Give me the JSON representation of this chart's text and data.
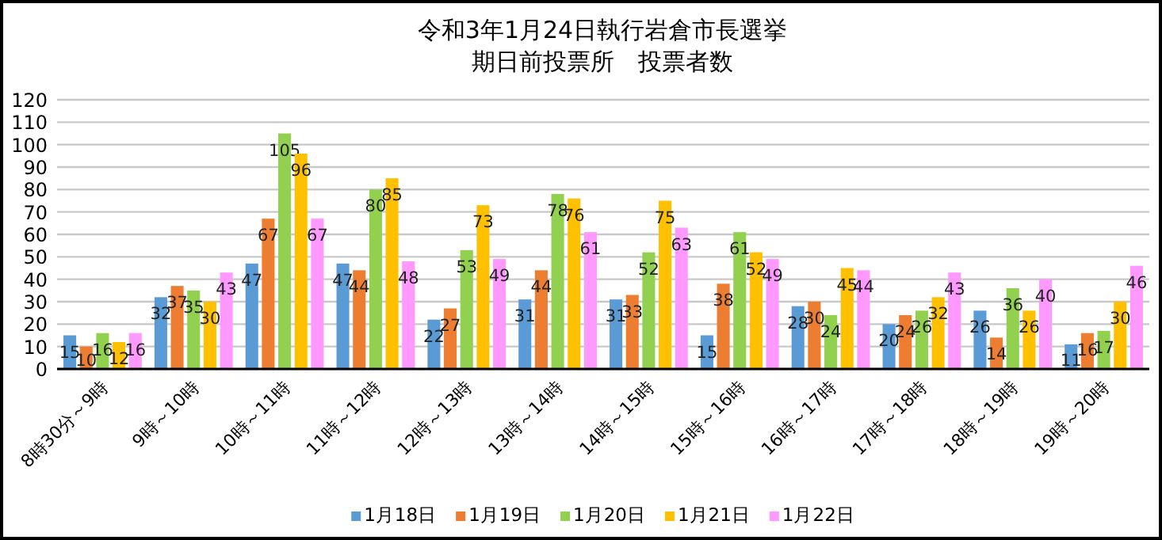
{
  "chart_data": {
    "type": "bar",
    "title": "令和3年1月24日執行岩倉市長選挙",
    "subtitle": "期日前投票所　投票者数",
    "categories": [
      "8時30分～9時",
      "9時～10時",
      "10時～11時",
      "11時～12時",
      "12時～13時",
      "13時～14時",
      "14時～15時",
      "15時～16時",
      "16時～17時",
      "17時～18時",
      "18時～19時",
      "19時～20時"
    ],
    "series": [
      {
        "name": "1月18日",
        "color": "#5b9bd5",
        "values": [
          15,
          32,
          47,
          47,
          22,
          31,
          31,
          15,
          28,
          20,
          26,
          11
        ]
      },
      {
        "name": "1月19日",
        "color": "#ed7d31",
        "values": [
          10,
          37,
          67,
          44,
          27,
          44,
          33,
          38,
          30,
          24,
          14,
          16
        ]
      },
      {
        "name": "1月20日",
        "color": "#92d050",
        "values": [
          16,
          35,
          105,
          80,
          53,
          78,
          52,
          61,
          24,
          26,
          36,
          17
        ]
      },
      {
        "name": "1月21日",
        "color": "#ffc000",
        "values": [
          12,
          30,
          96,
          85,
          73,
          76,
          75,
          52,
          45,
          32,
          26,
          30
        ]
      },
      {
        "name": "1月22日",
        "color": "#ff99ff",
        "values": [
          16,
          43,
          67,
          48,
          49,
          61,
          63,
          49,
          44,
          43,
          40,
          46
        ]
      }
    ],
    "ylim": [
      0,
      120
    ],
    "yticks": [
      0,
      10,
      20,
      30,
      40,
      50,
      60,
      70,
      80,
      90,
      100,
      110,
      120
    ],
    "grid": "y",
    "legend": "bottom",
    "data_labels": true
  }
}
